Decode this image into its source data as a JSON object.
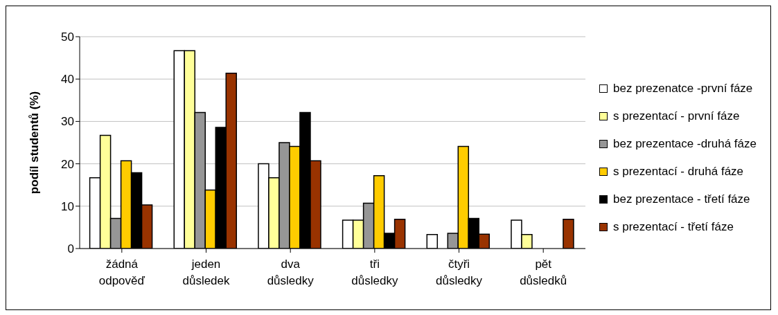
{
  "chart_data": {
    "type": "bar",
    "ylabel": "podíl studentů (%)",
    "categories": [
      "žádná odpověď",
      "jeden důsledek",
      "dva důsledky",
      "tři důsledky",
      "čtyři důsledky",
      "pět důsledků"
    ],
    "series": [
      {
        "name": "bez prezenatce -první fáze",
        "color": "#ffffff",
        "values": [
          16.7,
          46.7,
          20,
          6.7,
          3.3,
          6.7
        ]
      },
      {
        "name": "s prezentací - první fáze",
        "color": "#ffff99",
        "values": [
          26.7,
          46.7,
          16.7,
          6.7,
          0,
          3.3
        ]
      },
      {
        "name": "bez prezentace -druhá fáze",
        "color": "#969696",
        "values": [
          7.1,
          32.1,
          25,
          10.7,
          3.6,
          0
        ]
      },
      {
        "name": "s prezentací - druhá fáze",
        "color": "#ffcc00",
        "values": [
          20.7,
          13.8,
          24.1,
          17.2,
          24.1,
          0
        ]
      },
      {
        "name": "bez prezentace - třetí fáze",
        "color": "#000000",
        "values": [
          17.9,
          28.6,
          32.1,
          3.6,
          7.1,
          0
        ]
      },
      {
        "name": "s prezentací - třetí fáze",
        "color": "#993300",
        "values": [
          10.3,
          41.4,
          20.7,
          6.9,
          3.4,
          6.9
        ]
      }
    ],
    "ylim": [
      0,
      50
    ],
    "yticks": [
      0,
      10,
      20,
      30,
      40,
      50
    ],
    "grid": "y",
    "legend": "right"
  }
}
